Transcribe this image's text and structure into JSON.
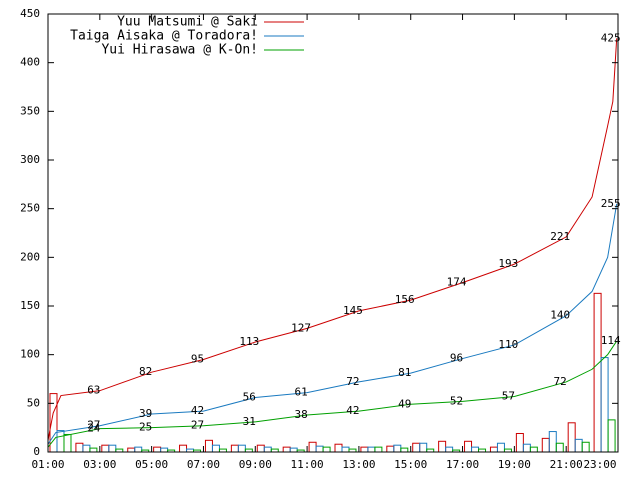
{
  "chart_data": {
    "type": "line",
    "xlim": [
      1,
      23
    ],
    "xticks": [
      {
        "value": 1,
        "label": "01:00"
      },
      {
        "value": 3,
        "label": "03:00"
      },
      {
        "value": 5,
        "label": "05:00"
      },
      {
        "value": 7,
        "label": "07:00"
      },
      {
        "value": 9,
        "label": "09:00"
      },
      {
        "value": 11,
        "label": "11:00"
      },
      {
        "value": 13,
        "label": "13:00"
      },
      {
        "value": 15,
        "label": "15:00"
      },
      {
        "value": 17,
        "label": "17:00"
      },
      {
        "value": 19,
        "label": "19:00"
      },
      {
        "value": 21,
        "label": "21:00"
      },
      {
        "value": 23,
        "label": "23:00"
      }
    ],
    "ylim": [
      0,
      450
    ],
    "yticks": [
      0,
      50,
      100,
      150,
      200,
      250,
      300,
      350,
      400,
      450
    ],
    "legend": "top-left",
    "series": [
      {
        "name": "Yuu Matsumi @ Saki",
        "color": "#cc0000",
        "x": [
          1,
          1.2,
          1.5,
          3,
          5,
          7,
          9,
          11,
          13,
          15,
          17,
          19,
          21,
          22,
          22.6,
          22.8,
          22.95
        ],
        "values": [
          12,
          40,
          58,
          63,
          82,
          95,
          113,
          127,
          145,
          156,
          174,
          193,
          221,
          262,
          335,
          360,
          425
        ],
        "labels": {
          "x": [
            3,
            5,
            7,
            9,
            11,
            13,
            15,
            17,
            19,
            21,
            22.95
          ],
          "values": [
            63,
            82,
            95,
            113,
            127,
            145,
            156,
            174,
            193,
            221,
            425
          ]
        }
      },
      {
        "name": "Taiga Aisaka @ Toradora!",
        "color": "#1a7ac0",
        "x": [
          1,
          1.3,
          3,
          5,
          7,
          9,
          11,
          13,
          15,
          17,
          19,
          21,
          22,
          22.6,
          22.95
        ],
        "values": [
          8,
          20,
          27,
          39,
          42,
          56,
          61,
          72,
          81,
          96,
          110,
          140,
          165,
          200,
          255
        ],
        "labels": {
          "x": [
            3,
            5,
            7,
            9,
            11,
            13,
            15,
            17,
            19,
            21,
            22.95
          ],
          "values": [
            27,
            39,
            42,
            56,
            61,
            72,
            81,
            96,
            110,
            140,
            255
          ]
        }
      },
      {
        "name": "Yui Hirasawa @ K-On!",
        "color": "#00a000",
        "x": [
          1,
          1.3,
          3,
          5,
          7,
          9,
          11,
          13,
          15,
          17,
          19,
          21,
          22,
          22.6,
          22.95
        ],
        "values": [
          5,
          15,
          24,
          25,
          27,
          31,
          38,
          42,
          49,
          52,
          57,
          72,
          85,
          100,
          114
        ],
        "labels": {
          "x": [
            3,
            5,
            7,
            9,
            11,
            13,
            15,
            17,
            19,
            21,
            22.95
          ],
          "values": [
            24,
            25,
            27,
            31,
            38,
            42,
            49,
            52,
            57,
            72,
            114
          ]
        }
      }
    ],
    "bars": {
      "x": [
        1,
        2,
        3,
        4,
        5,
        6,
        7,
        8,
        9,
        10,
        11,
        12,
        13,
        14,
        15,
        16,
        17,
        18,
        19,
        20,
        21,
        22
      ],
      "series": [
        {
          "color": "#cc0000",
          "values": [
            60,
            9,
            7,
            4,
            5,
            7,
            12,
            7,
            7,
            5,
            10,
            8,
            5,
            6,
            9,
            11,
            11,
            5,
            19,
            14,
            30,
            163
          ]
        },
        {
          "color": "#1a7ac0",
          "values": [
            22,
            7,
            7,
            5,
            4,
            3,
            7,
            7,
            5,
            4,
            6,
            5,
            5,
            7,
            9,
            5,
            5,
            9,
            8,
            21,
            13,
            97
          ]
        },
        {
          "color": "#00a000",
          "values": [
            18,
            4,
            3,
            2,
            2,
            2,
            3,
            3,
            3,
            2,
            5,
            3,
            5,
            4,
            3,
            2,
            3,
            3,
            5,
            9,
            10,
            33
          ]
        }
      ]
    }
  }
}
